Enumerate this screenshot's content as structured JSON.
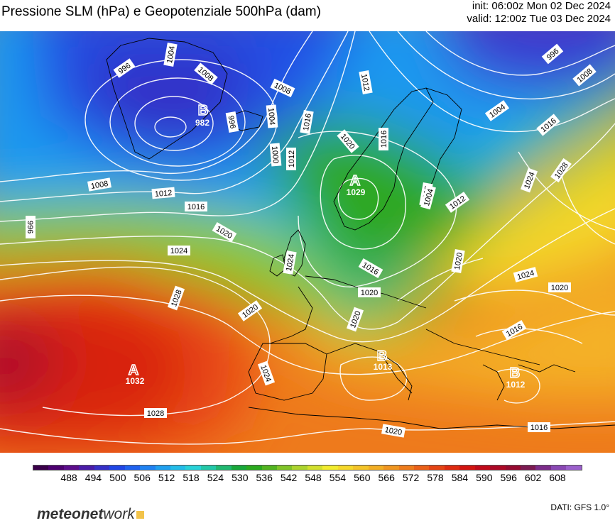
{
  "title": "Pressione SLM (hPa) e Geopotenziale 500hPa (dam)",
  "init": "init: 06:00z Mon 02 Dec 2024",
  "valid": "valid: 12:00z Tue 03 Dec 2024",
  "logo": {
    "bold": "meteonet",
    "light": "work"
  },
  "source": "DATI:  GFS  1.0°",
  "colorbar": {
    "ticks": [
      "488",
      "494",
      "500",
      "506",
      "512",
      "518",
      "524",
      "530",
      "536",
      "542",
      "548",
      "554",
      "560",
      "566",
      "572",
      "578",
      "584",
      "590",
      "596",
      "602",
      "608"
    ],
    "colors": [
      "#3a004a",
      "#4d0070",
      "#5c0d8c",
      "#4a1ca8",
      "#3630c8",
      "#2046e6",
      "#1f62ef",
      "#1f82f2",
      "#1fa0ef",
      "#23bce8",
      "#28d2d8",
      "#22c8a8",
      "#20b870",
      "#18a83a",
      "#2aaa1e",
      "#52b420",
      "#80c428",
      "#acd42e",
      "#d2e02e",
      "#f2ec2e",
      "#f6d82a",
      "#f4c428",
      "#f2ae24",
      "#f09620",
      "#ee7c1c",
      "#ea6018",
      "#e54414",
      "#de2a10",
      "#d21410",
      "#c00a1a",
      "#ac0826",
      "#960a30",
      "#7c1a52",
      "#7c2c8a",
      "#8a48b4",
      "#9c60cc"
    ]
  },
  "map_labels": {
    "isobars": [
      "996",
      "1004",
      "1008",
      "1008",
      "1004",
      "1000",
      "1012",
      "1016",
      "1020",
      "1016",
      "1012",
      "1008",
      "1004",
      "996",
      "1008",
      "1016",
      "1024",
      "1028",
      "1008",
      "1012",
      "1016",
      "1020",
      "1024",
      "1028",
      "1020",
      "1024",
      "1020",
      "1020",
      "1016",
      "1012",
      "1020",
      "1024",
      "1020",
      "1016",
      "1024",
      "1020",
      "1028",
      "1020",
      "1016",
      "996",
      "1004",
      "996"
    ],
    "centers": [
      {
        "letter": "B",
        "value": "982"
      },
      {
        "letter": "A",
        "value": "1029"
      },
      {
        "letter": "A",
        "value": "1032"
      },
      {
        "letter": "B",
        "value": "1013"
      },
      {
        "letter": "B",
        "value": "1012"
      }
    ]
  }
}
